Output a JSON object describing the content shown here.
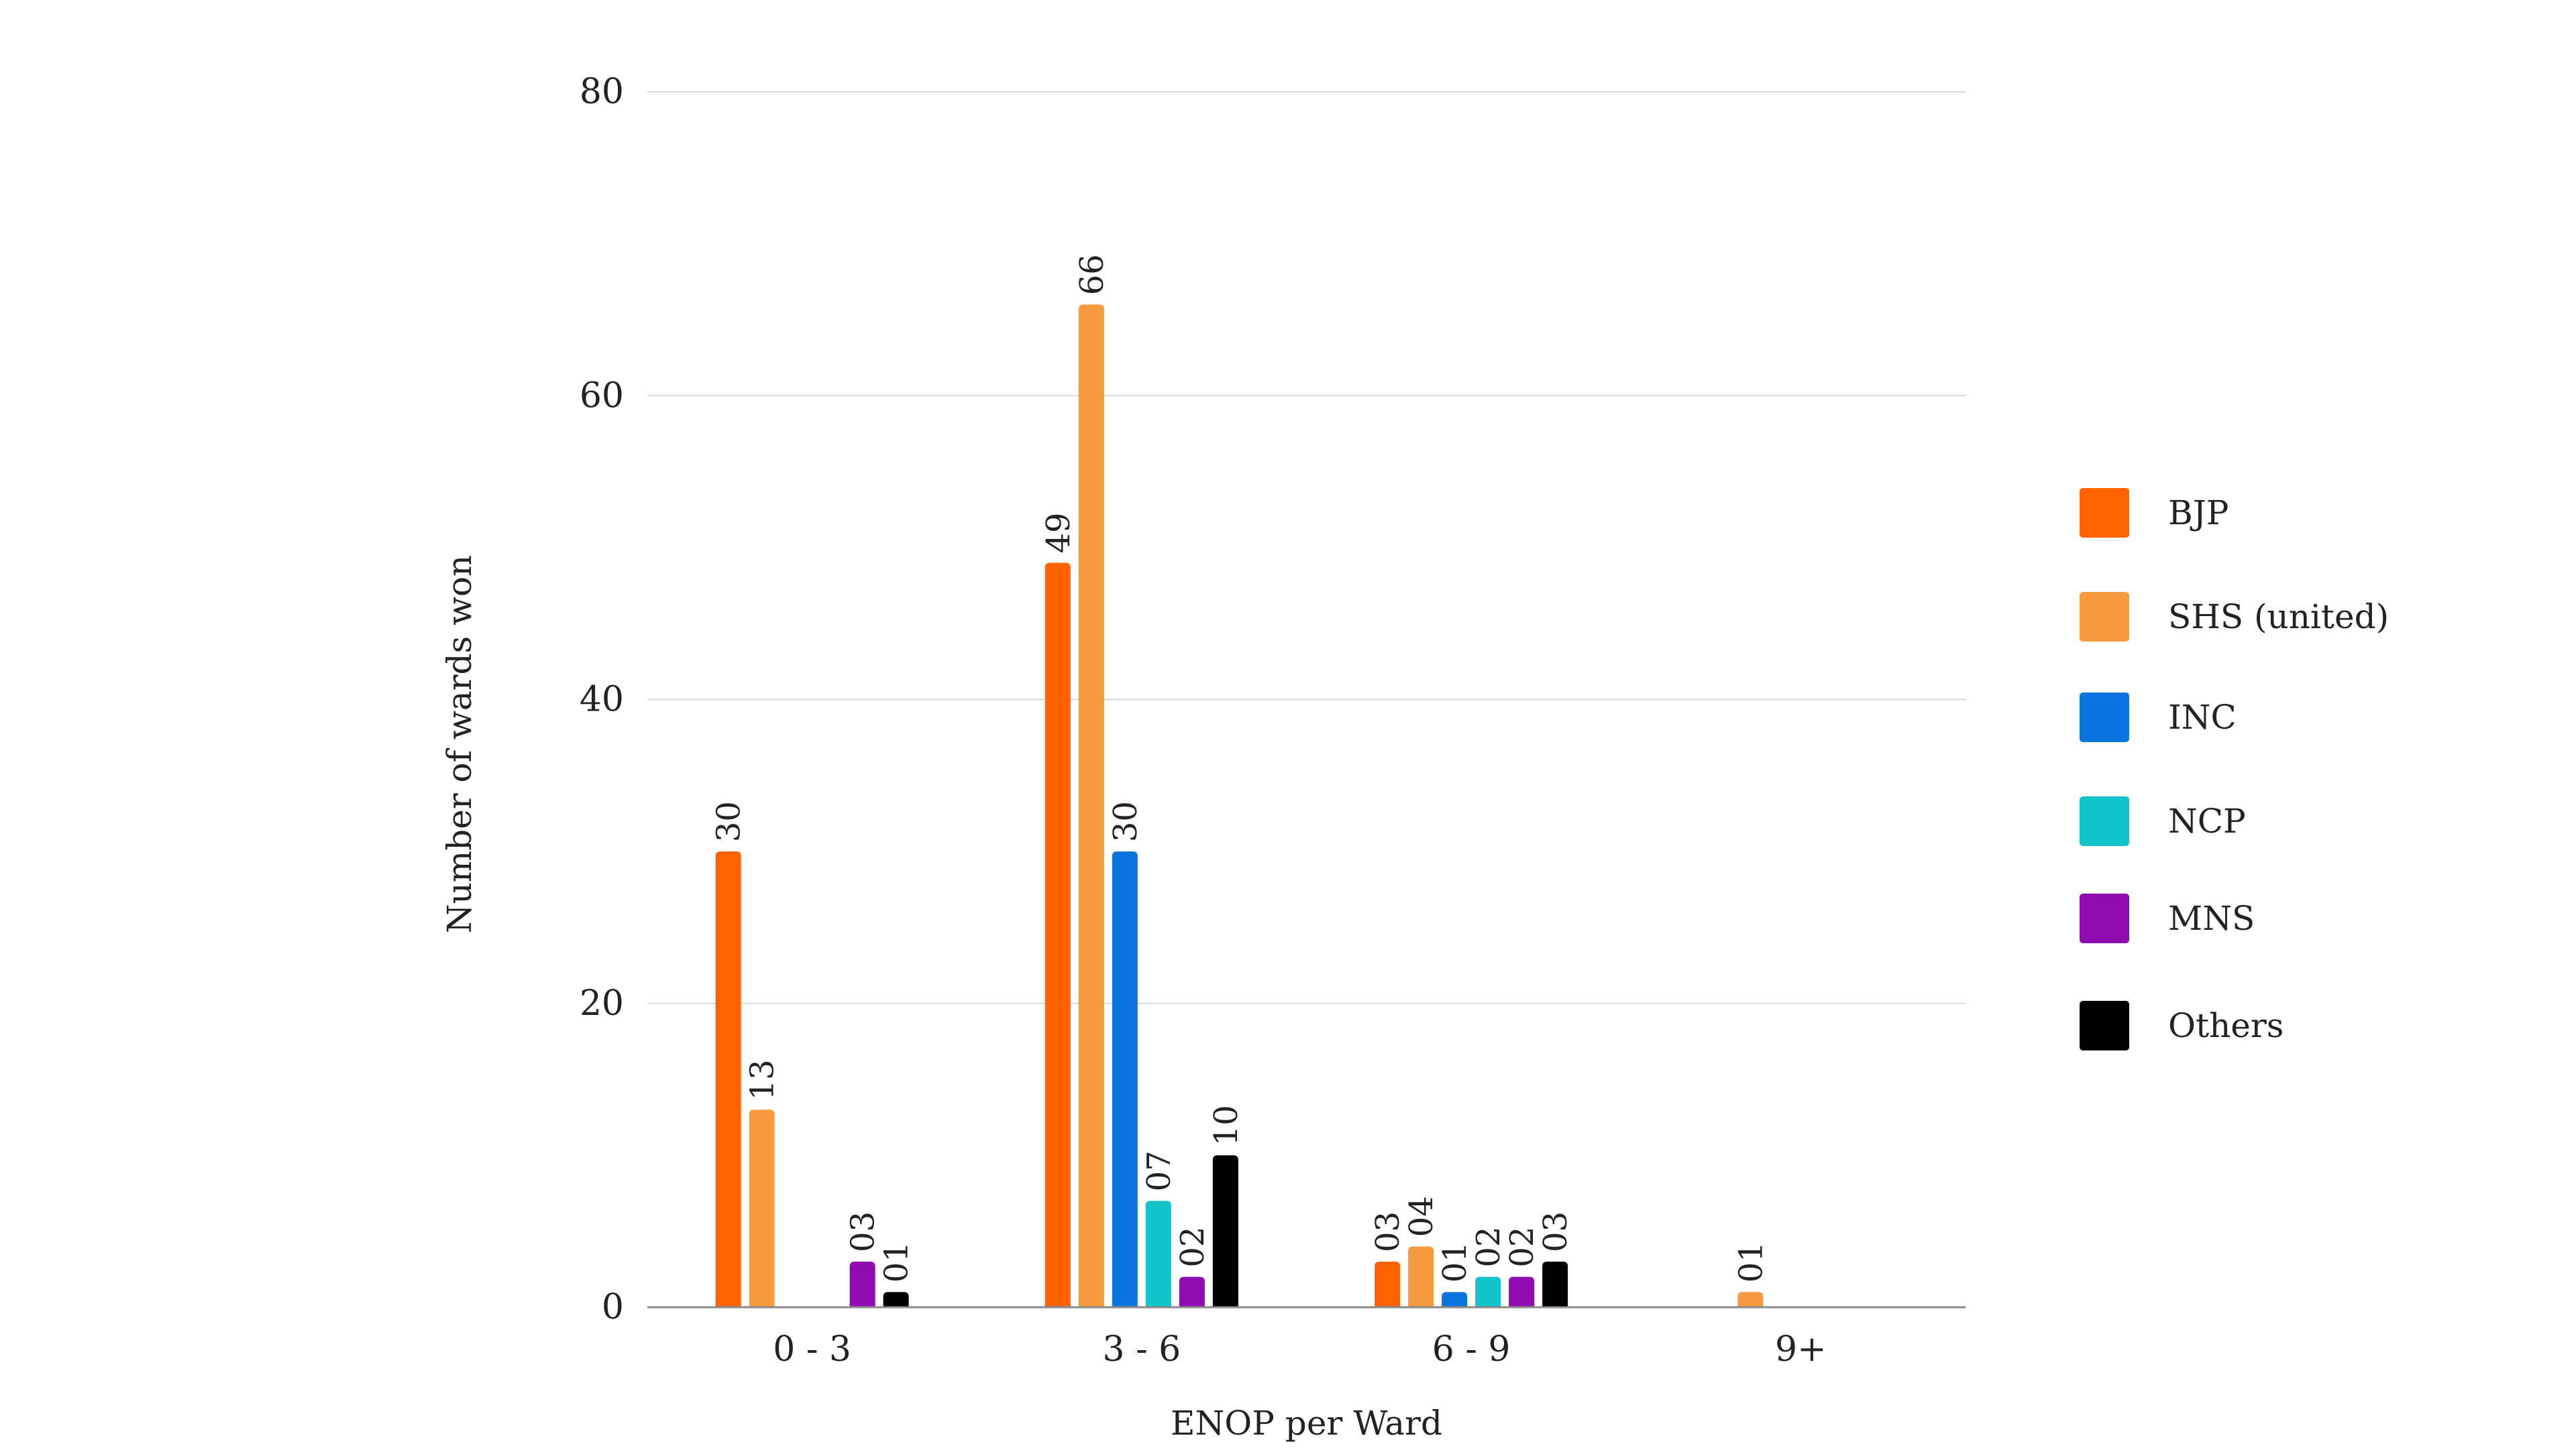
{
  "chart_data": {
    "type": "bar",
    "title": "",
    "xlabel": "ENOP per Ward",
    "ylabel": "Number of wards won",
    "ylim": [
      0,
      80
    ],
    "yticks": [
      0,
      20,
      40,
      60,
      80
    ],
    "grid": true,
    "legend_position": "right",
    "categories": [
      "0 - 3",
      "3 - 6",
      "6 - 9",
      "9+"
    ],
    "series": [
      {
        "name": "BJP",
        "color": "#FF6200",
        "values": [
          30,
          49,
          3,
          null
        ],
        "labels": [
          "30",
          "49",
          "03",
          ""
        ]
      },
      {
        "name": "SHS (united)",
        "color": "#F89A40",
        "values": [
          13,
          66,
          4,
          1
        ],
        "labels": [
          "13",
          "66",
          "04",
          "01"
        ]
      },
      {
        "name": "INC",
        "color": "#0B74DE",
        "values": [
          null,
          30,
          1,
          null
        ],
        "labels": [
          "",
          "30",
          "01",
          ""
        ]
      },
      {
        "name": "NCP",
        "color": "#12C3C9",
        "values": [
          null,
          7,
          2,
          null
        ],
        "labels": [
          "",
          "07",
          "02",
          ""
        ]
      },
      {
        "name": "MNS",
        "color": "#8E0CB0",
        "values": [
          3,
          2,
          2,
          null
        ],
        "labels": [
          "03",
          "02",
          "02",
          ""
        ]
      },
      {
        "name": "Others",
        "color": "#000000",
        "values": [
          1,
          10,
          3,
          null
        ],
        "labels": [
          "01",
          "10",
          "03",
          ""
        ]
      }
    ]
  }
}
